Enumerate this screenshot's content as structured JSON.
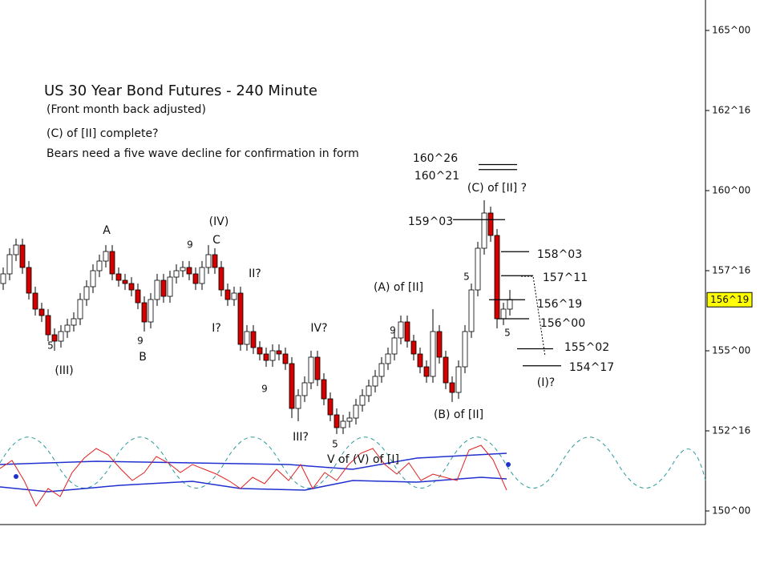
{
  "chart_data": {
    "type": "candlestick",
    "title": "US 30 Year Bond Futures - 240 Minute",
    "subtitle": "(Front month back adjusted)",
    "notes": [
      "(C) of [II] complete?",
      "Bears need a five wave decline for confirmation in form"
    ],
    "open": [
      157.1,
      157.4,
      158.0,
      158.3,
      157.6,
      156.8,
      156.3,
      156.1,
      155.5,
      155.3,
      155.6,
      155.8,
      156.0,
      156.6,
      157.0,
      157.5,
      157.8,
      158.1,
      157.4,
      157.2,
      157.1,
      156.9,
      156.5,
      155.9,
      156.6,
      157.2,
      156.7,
      157.3,
      157.5,
      157.6,
      157.4,
      157.1,
      157.6,
      158.0,
      157.6,
      156.9,
      156.6,
      156.8,
      155.2,
      155.6,
      155.1,
      154.9,
      154.7,
      155.0,
      154.9,
      154.6,
      153.2,
      153.6,
      154.0,
      154.8,
      154.1,
      153.5,
      153.0,
      152.6,
      152.8,
      152.9,
      153.3,
      153.6,
      153.9,
      154.2,
      154.6,
      154.9,
      155.4,
      155.9,
      155.3,
      154.9,
      154.5,
      154.2,
      155.6,
      154.8,
      154.0,
      153.7,
      154.5,
      155.6,
      156.9,
      158.2,
      159.3,
      158.6,
      156.0,
      156.3
    ],
    "high": [
      157.6,
      158.2,
      158.5,
      158.5,
      157.8,
      157.0,
      156.5,
      156.3,
      155.7,
      155.8,
      156.0,
      156.2,
      156.8,
      157.2,
      157.7,
      158.0,
      158.3,
      158.3,
      157.6,
      157.4,
      157.3,
      157.1,
      156.7,
      156.8,
      157.4,
      157.4,
      157.5,
      157.7,
      157.8,
      157.8,
      157.6,
      157.8,
      158.3,
      158.2,
      157.8,
      157.1,
      157.0,
      157.0,
      155.8,
      155.8,
      155.3,
      155.1,
      155.2,
      155.2,
      155.1,
      154.8,
      153.8,
      154.2,
      155.0,
      155.0,
      154.3,
      153.7,
      153.2,
      153.0,
      153.1,
      153.5,
      153.8,
      154.1,
      154.4,
      154.8,
      155.1,
      155.6,
      156.1,
      156.1,
      155.5,
      155.1,
      154.7,
      156.3,
      155.8,
      155.0,
      154.2,
      154.7,
      155.8,
      157.1,
      158.4,
      159.7,
      159.5,
      158.8,
      156.5,
      156.9
    ],
    "low": [
      156.9,
      157.2,
      157.8,
      157.4,
      156.6,
      156.1,
      155.9,
      155.3,
      155.0,
      155.1,
      155.4,
      155.6,
      155.8,
      156.4,
      156.8,
      157.3,
      157.6,
      157.2,
      157.0,
      156.9,
      156.7,
      156.3,
      155.6,
      155.7,
      156.4,
      156.5,
      156.5,
      157.1,
      157.3,
      157.2,
      156.9,
      156.9,
      157.4,
      157.4,
      156.7,
      156.4,
      156.4,
      155.0,
      155.0,
      154.9,
      154.7,
      154.5,
      154.5,
      154.7,
      154.4,
      152.9,
      152.8,
      153.4,
      153.8,
      153.9,
      153.3,
      152.8,
      152.4,
      152.4,
      152.6,
      152.7,
      153.1,
      153.4,
      153.7,
      154.0,
      154.4,
      154.7,
      155.2,
      155.1,
      154.7,
      154.3,
      154.0,
      154.0,
      154.6,
      153.8,
      153.4,
      153.5,
      154.3,
      155.4,
      156.7,
      158.0,
      158.4,
      155.7,
      155.8,
      156.1
    ],
    "close": [
      157.4,
      158.0,
      158.3,
      157.6,
      156.8,
      156.3,
      156.1,
      155.5,
      155.3,
      155.6,
      155.8,
      156.0,
      156.6,
      157.0,
      157.5,
      157.8,
      158.1,
      157.4,
      157.2,
      157.1,
      156.9,
      156.5,
      155.9,
      156.6,
      157.2,
      156.7,
      157.3,
      157.5,
      157.6,
      157.4,
      157.1,
      157.6,
      158.0,
      157.6,
      156.9,
      156.6,
      156.8,
      155.2,
      155.6,
      155.1,
      154.9,
      154.7,
      155.0,
      154.9,
      154.6,
      153.2,
      153.6,
      154.0,
      154.8,
      154.1,
      153.5,
      153.0,
      152.6,
      152.8,
      152.9,
      153.3,
      153.6,
      153.9,
      154.2,
      154.6,
      154.9,
      155.4,
      155.9,
      155.3,
      154.9,
      154.5,
      154.2,
      155.6,
      154.8,
      154.0,
      153.7,
      154.5,
      155.6,
      156.9,
      158.2,
      159.3,
      158.6,
      156.0,
      156.3,
      156.6
    ],
    "up_color": "#ffffff",
    "down_color": "#d40000",
    "ylim": [
      149.575,
      165.95
    ],
    "yticks": [
      {
        "value": 150,
        "label": "150^00"
      },
      {
        "value": 152.5,
        "label": "152^16"
      },
      {
        "value": 155,
        "label": "155^00"
      },
      {
        "value": 157.5,
        "label": "157^16"
      },
      {
        "value": 160,
        "label": "160^00"
      },
      {
        "value": 162.5,
        "label": "162^16"
      },
      {
        "value": 165,
        "label": "165^00"
      }
    ],
    "last_price": {
      "value": 156.59375,
      "label": "156^19"
    },
    "levels": [
      {
        "value": 160.8125,
        "label": "160^26"
      },
      {
        "value": 160.65625,
        "label": "160^21"
      },
      {
        "value": 159.09375,
        "label": "159^03"
      },
      {
        "value": 158.09375,
        "label": "158^03"
      },
      {
        "value": 157.34375,
        "label": "157^11"
      },
      {
        "value": 156.59375,
        "label": "156^19"
      },
      {
        "value": 156,
        "label": "156^00"
      },
      {
        "value": 155.0625,
        "label": "155^02"
      },
      {
        "value": 154.53125,
        "label": "154^17"
      }
    ],
    "wave_labels": [
      "A",
      "(IV)",
      "C",
      "9",
      "II?",
      "I?",
      "IV?",
      "III?",
      "5",
      "V of (V) of [I]",
      "(III)",
      "5",
      "9",
      "B",
      "9",
      "(A) of [II]",
      "9",
      "5",
      "(B) of [II]",
      "(C) of [II] ?",
      "5",
      "(I)?"
    ]
  }
}
